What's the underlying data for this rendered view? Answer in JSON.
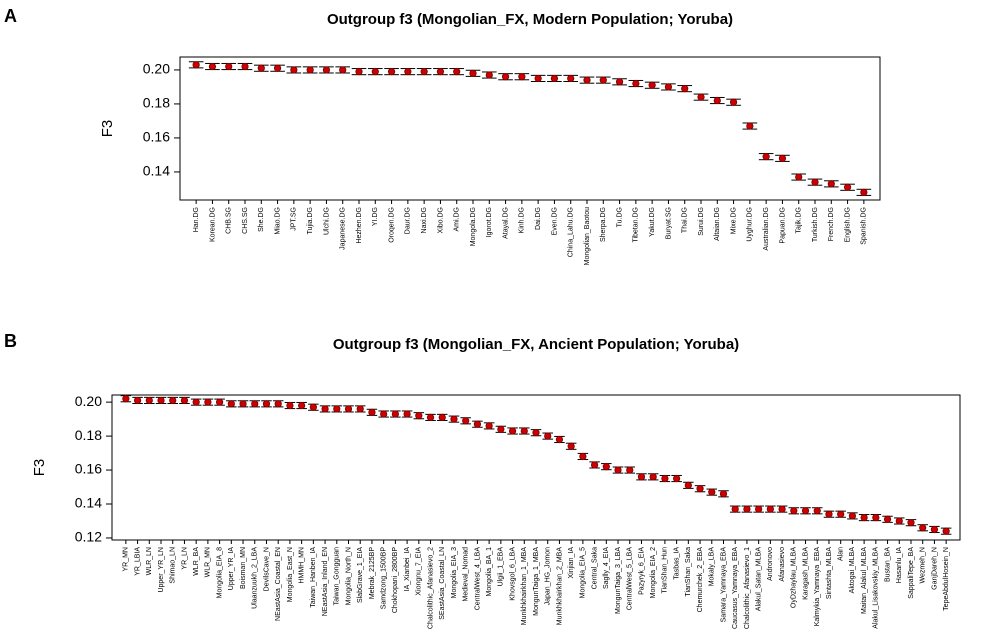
{
  "chart_data": [
    {
      "type": "errorbar",
      "panel_label": "A",
      "title": "Outgroup f3 (Mongolian_FX, Modern Population; Yoruba)",
      "y_label": "F3",
      "color": "#cc0000",
      "categories": [
        "Han.DG",
        "Korean.DG",
        "CHB.SG",
        "CHS.SG",
        "She.DG",
        "Miao.DG",
        "JPT.SG",
        "Tujia.DG",
        "Ulchi.DG",
        "Japanese.DG",
        "Hezhen.DG",
        "YI.DG",
        "Oroqen.DG",
        "Daur.DG",
        "Naxi.DG",
        "Xibo.DG",
        "Ami.DG",
        "Mongola.DG",
        "Igorot.DG",
        "Atayal.DG",
        "Kinh.DG",
        "Dai.DG",
        "Even.DG",
        "China_Lahu.DG",
        "Mongolian_Baotou",
        "Sherpa.DG",
        "Tu.DG",
        "Tibetan.DG",
        "Yakut.DG",
        "Buryat.SG",
        "Thai.DG",
        "Surui.DG",
        "Altaian.DG",
        "Mixe.DG",
        "Uyghur.DG",
        "Australian.DG",
        "Papuan.DG",
        "Tajik.DG",
        "Turkish.DG",
        "French.DG",
        "English.DG",
        "Spanish.DG"
      ],
      "values": [
        0.203,
        0.202,
        0.202,
        0.202,
        0.201,
        0.201,
        0.2,
        0.2,
        0.2,
        0.2,
        0.199,
        0.199,
        0.199,
        0.199,
        0.199,
        0.199,
        0.199,
        0.198,
        0.197,
        0.196,
        0.196,
        0.195,
        0.195,
        0.195,
        0.194,
        0.194,
        0.193,
        0.192,
        0.191,
        0.19,
        0.189,
        0.184,
        0.182,
        0.181,
        0.167,
        0.149,
        0.148,
        0.137,
        0.134,
        0.133,
        0.131,
        0.128
      ],
      "errors": [
        0.0018,
        0.0018,
        0.0018,
        0.0018,
        0.0018,
        0.0018,
        0.0018,
        0.0018,
        0.0018,
        0.0018,
        0.0018,
        0.0018,
        0.0018,
        0.0018,
        0.0018,
        0.0018,
        0.0018,
        0.0018,
        0.0018,
        0.0018,
        0.0018,
        0.0018,
        0.0018,
        0.0018,
        0.0018,
        0.0018,
        0.0018,
        0.0018,
        0.0018,
        0.0018,
        0.0018,
        0.0018,
        0.0018,
        0.0018,
        0.0018,
        0.0018,
        0.0018,
        0.0018,
        0.0018,
        0.0018,
        0.0018,
        0.0018
      ],
      "ylim": [
        0.1235,
        0.2076
      ],
      "yticks": [
        {
          "value": 0.2,
          "label": "0.20"
        },
        0.18,
        0.16,
        0.14
      ]
    },
    {
      "type": "errorbar",
      "panel_label": "B",
      "title": "Outgroup f3 (Mongolian_FX, Ancient Population; Yoruba)",
      "y_label": "F3",
      "color": "#cc0000",
      "categories": [
        "YR_MN",
        "YR_LBIA",
        "WLR_LN",
        "Upper_YR_LN",
        "Shimao_LN",
        "YR_LN",
        "WLR_BA",
        "WLR_MN",
        "Mongolia_EIA_8",
        "Upper_YR_IA",
        "Boisman_MN",
        "Ulaanzuukh_2_LBA",
        "DevilsCave_N",
        "NEastAsia_Coastal_EN",
        "Mongolia_East_N",
        "HMMH_MN",
        "Taiwan_Hanben_IA",
        "NEastAsia_Inland_EN",
        "Taiwan_Gongguan",
        "Mongolia_North_N",
        "SlabGrave_1_EIA",
        "Mebrak_2125BP",
        "Samdzong_1500BP",
        "Chokhopani_2800BP",
        "IA_Xianbei_IA",
        "Xiongnu_7_EIA",
        "Chalcolithic_Afanasievo_2",
        "SEastAsia_Coastal_LN",
        "Mongolia_EIA_3",
        "Medieval_Nomad",
        "CentralWest_4_LBA",
        "Mongolia_BA_1",
        "Ulgii_1_EBA",
        "Khovsgol_6_LBA",
        "Munkhkhairkhan_1_MBA",
        "MongunTaiga_1_MBA",
        "Japan_HG_Jomon",
        "Munkhkhairkhan_2_MBA",
        "Xinjian_IA",
        "Mongolia_EIA_5",
        "Central_Saka",
        "Saglly_4_EIA",
        "MongunTaiga_3_LBA",
        "CentralWest_5_LBA",
        "Pazyryk_6_EIA",
        "Mongolia_EIA_2",
        "TianShan_Hun",
        "Tasbas_IA",
        "TianShan_Saka",
        "Chemurchek_2_EBA",
        "Mokaly_LBA",
        "Samara_Yamnaya_EBA",
        "Caucasus_Yamnaya_EBA",
        "Chalcolithic_Afanasievo_1",
        "Alakul_Satan_MLBA",
        "Andronovo",
        "Afanasievo",
        "OyDzhaylau_MLBA",
        "Karagash_MLBA",
        "Kalmykia_Yamnaya_EBA",
        "Sintashta_MLBA",
        "Alan",
        "Aktogai_MLBA",
        "Maitan_Alakul_MLBA",
        "Alakul_Lisakovskiy_MLBA",
        "Bustan_BA",
        "Hasanlu_IA",
        "SappaliTepe_BA",
        "Wezmeh_N",
        "GanjDareh_N",
        "TepeAbdulHosein_N"
      ],
      "values": [
        0.202,
        0.201,
        0.201,
        0.201,
        0.201,
        0.201,
        0.2,
        0.2,
        0.2,
        0.199,
        0.199,
        0.199,
        0.199,
        0.199,
        0.198,
        0.198,
        0.197,
        0.196,
        0.196,
        0.196,
        0.196,
        0.194,
        0.193,
        0.193,
        0.193,
        0.192,
        0.191,
        0.191,
        0.19,
        0.189,
        0.187,
        0.186,
        0.184,
        0.183,
        0.183,
        0.182,
        0.18,
        0.178,
        0.174,
        0.168,
        0.163,
        0.162,
        0.16,
        0.16,
        0.156,
        0.156,
        0.155,
        0.155,
        0.151,
        0.149,
        0.147,
        0.146,
        0.137,
        0.137,
        0.137,
        0.137,
        0.137,
        0.136,
        0.136,
        0.136,
        0.134,
        0.134,
        0.133,
        0.132,
        0.132,
        0.131,
        0.13,
        0.129,
        0.126,
        0.125,
        0.124
      ],
      "errors": [
        0.0018,
        0.0018,
        0.0018,
        0.0018,
        0.0018,
        0.0018,
        0.0018,
        0.0018,
        0.0018,
        0.0018,
        0.0018,
        0.0018,
        0.0018,
        0.0018,
        0.0018,
        0.0018,
        0.0018,
        0.0018,
        0.0018,
        0.0018,
        0.0018,
        0.0018,
        0.0018,
        0.0018,
        0.0018,
        0.0018,
        0.0018,
        0.0018,
        0.0018,
        0.0018,
        0.0018,
        0.0018,
        0.0018,
        0.0018,
        0.0018,
        0.0018,
        0.0018,
        0.0018,
        0.0018,
        0.0018,
        0.0018,
        0.0018,
        0.0018,
        0.0018,
        0.0018,
        0.0018,
        0.0018,
        0.0018,
        0.0018,
        0.0018,
        0.0018,
        0.0018,
        0.0018,
        0.0018,
        0.0018,
        0.0018,
        0.0018,
        0.0018,
        0.0018,
        0.0018,
        0.0018,
        0.0018,
        0.0018,
        0.0018,
        0.0018,
        0.0018,
        0.0018,
        0.0018,
        0.0018,
        0.0018,
        0.0018
      ],
      "ylim": [
        0.1188,
        0.2042
      ],
      "yticks": [
        {
          "value": 0.2,
          "label": "0.20"
        },
        0.18,
        0.16,
        0.14,
        0.12
      ]
    }
  ]
}
